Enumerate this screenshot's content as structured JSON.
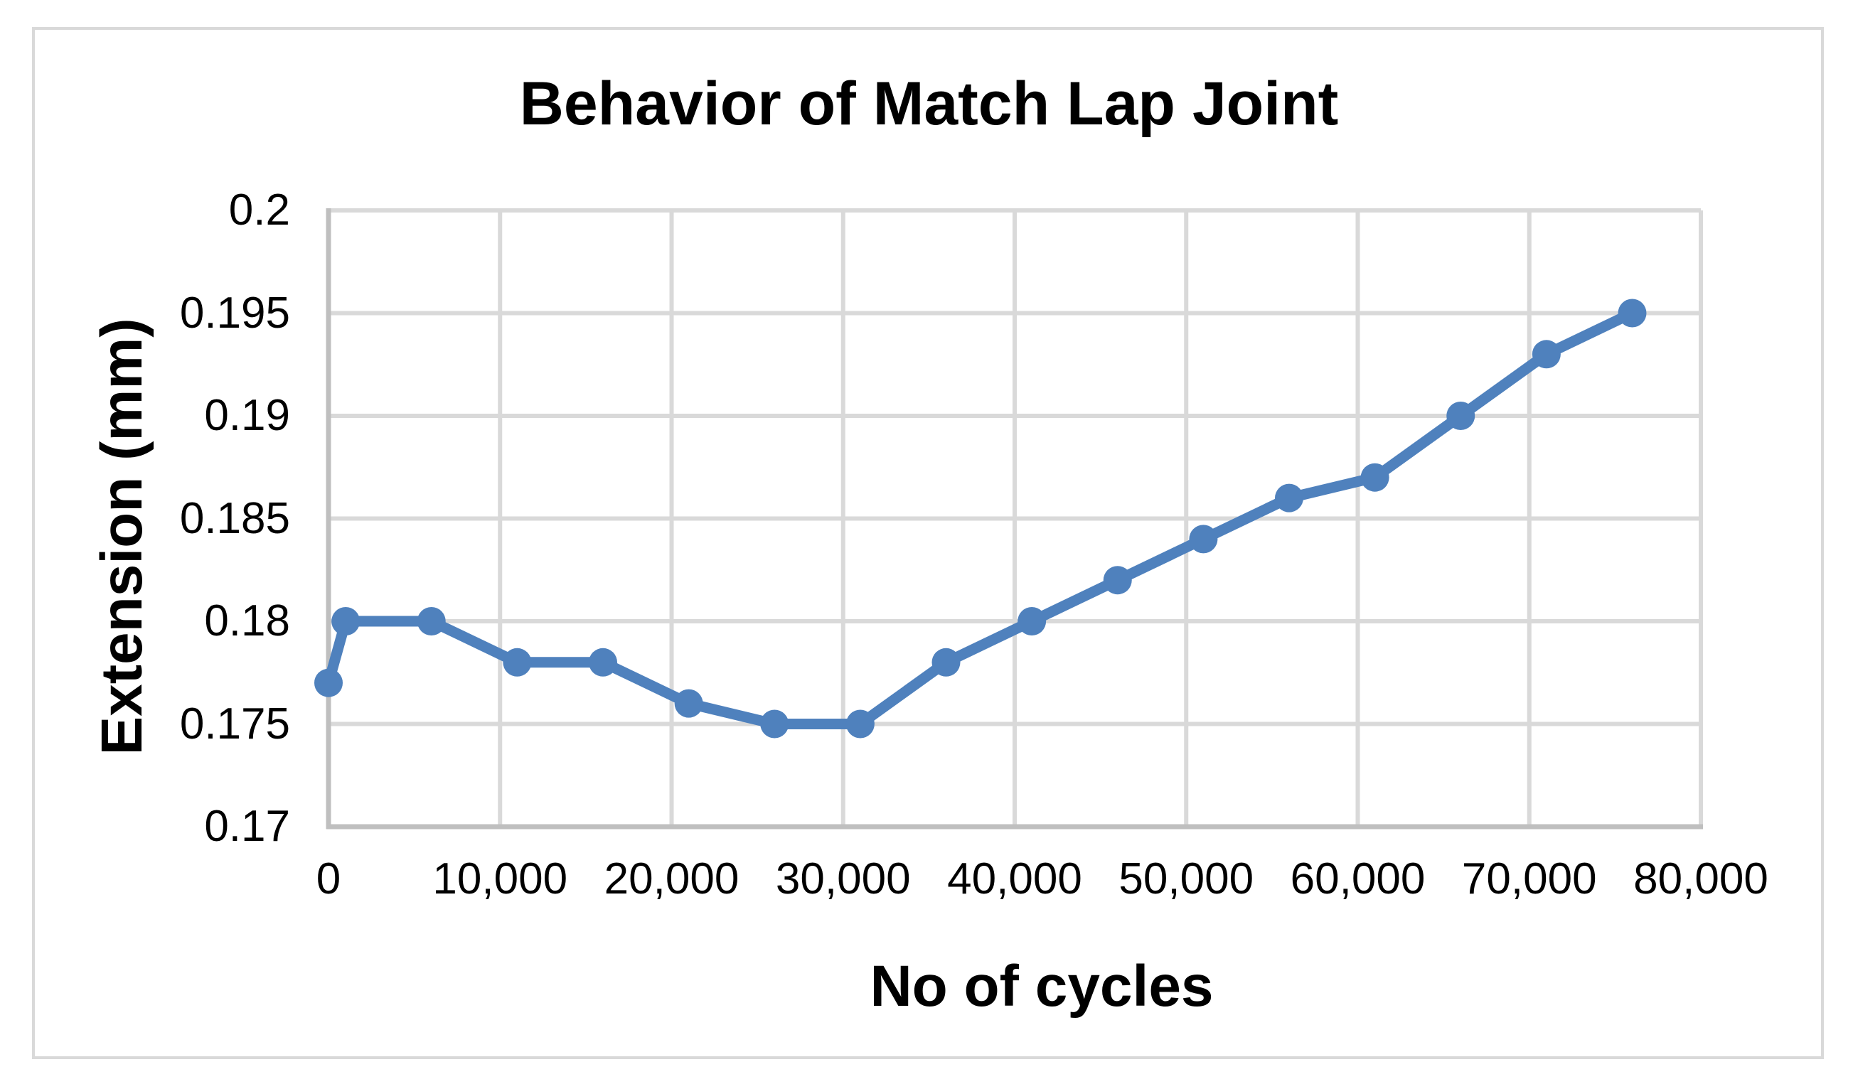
{
  "chart_data": {
    "type": "line",
    "title": "Behavior of Match Lap Joint",
    "xlabel": "No of cycles",
    "ylabel": "Extension (mm)",
    "xlim": [
      0,
      80000
    ],
    "ylim": [
      0.17,
      0.2
    ],
    "grid": true,
    "legend": false,
    "x_ticks": [
      {
        "value": 0,
        "label": "0"
      },
      {
        "value": 10000,
        "label": "10,000"
      },
      {
        "value": 20000,
        "label": "20,000"
      },
      {
        "value": 30000,
        "label": "30,000"
      },
      {
        "value": 40000,
        "label": "40,000"
      },
      {
        "value": 50000,
        "label": "50,000"
      },
      {
        "value": 60000,
        "label": "60,000"
      },
      {
        "value": 70000,
        "label": "70,000"
      },
      {
        "value": 80000,
        "label": "80,000"
      }
    ],
    "y_ticks": [
      {
        "value": 0.2,
        "label": "0.2"
      },
      {
        "value": 0.195,
        "label": "0.195"
      },
      {
        "value": 0.19,
        "label": "0.19"
      },
      {
        "value": 0.185,
        "label": "0.185"
      },
      {
        "value": 0.18,
        "label": "0.18"
      },
      {
        "value": 0.175,
        "label": "0.175"
      },
      {
        "value": 0.17,
        "label": "0.17"
      }
    ],
    "series": [
      {
        "name": "Extension (mm)",
        "color": "#4F81BD",
        "marker": "circle",
        "points": [
          [
            0,
            0.177
          ],
          [
            1000,
            0.18
          ],
          [
            6000,
            0.18
          ],
          [
            11000,
            0.178
          ],
          [
            16000,
            0.178
          ],
          [
            21000,
            0.176
          ],
          [
            26000,
            0.175
          ],
          [
            31000,
            0.175
          ],
          [
            36000,
            0.178
          ],
          [
            41000,
            0.18
          ],
          [
            46000,
            0.182
          ],
          [
            51000,
            0.184
          ],
          [
            56000,
            0.186
          ],
          [
            61000,
            0.187
          ],
          [
            66000,
            0.19
          ],
          [
            71000,
            0.193
          ],
          [
            76000,
            0.195
          ]
        ]
      }
    ]
  },
  "colors": {
    "series": "#4F81BD",
    "gridline": "#D9D9D9",
    "axis": "#BFBFBF",
    "frame_border": "#D9D9D9",
    "text": "#000000"
  }
}
